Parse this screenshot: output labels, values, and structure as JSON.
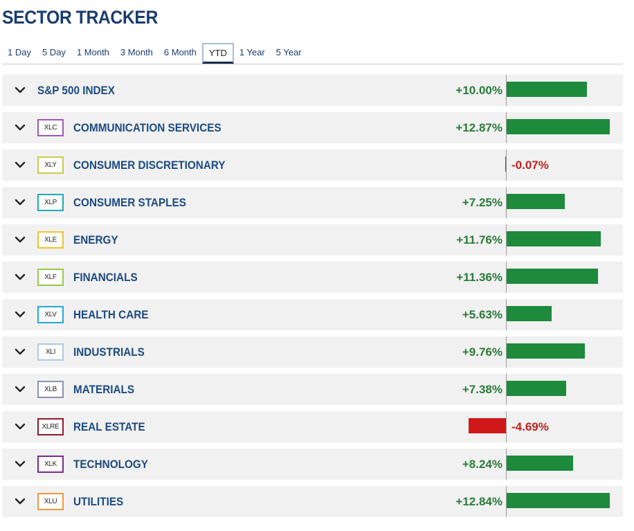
{
  "header": {
    "title": "SECTOR TRACKER"
  },
  "tabs": [
    {
      "label": "1 Day",
      "active": false
    },
    {
      "label": "5 Day",
      "active": false
    },
    {
      "label": "1 Month",
      "active": false
    },
    {
      "label": "3 Month",
      "active": false
    },
    {
      "label": "6 Month",
      "active": false
    },
    {
      "label": "YTD",
      "active": true
    },
    {
      "label": "1 Year",
      "active": false
    },
    {
      "label": "5 Year",
      "active": false
    }
  ],
  "rows": [
    {
      "ticker": "",
      "name": "S&P 500 INDEX",
      "value_text": "+10.00%",
      "value": 10.0,
      "badge_color": ""
    },
    {
      "ticker": "XLC",
      "name": "COMMUNICATION SERVICES",
      "value_text": "+12.87%",
      "value": 12.87,
      "badge_color": "#9b59b6"
    },
    {
      "ticker": "XLY",
      "name": "CONSUMER DISCRETIONARY",
      "value_text": "-0.07%",
      "value": -0.07,
      "badge_color": "#c8cc4a"
    },
    {
      "ticker": "XLP",
      "name": "CONSUMER STAPLES",
      "value_text": "+7.25%",
      "value": 7.25,
      "badge_color": "#1fa8b0"
    },
    {
      "ticker": "XLE",
      "name": "ENERGY",
      "value_text": "+11.76%",
      "value": 11.76,
      "badge_color": "#f0c428"
    },
    {
      "ticker": "XLF",
      "name": "FINANCIALS",
      "value_text": "+11.36%",
      "value": 11.36,
      "badge_color": "#9ac84a"
    },
    {
      "ticker": "XLV",
      "name": "HEALTH CARE",
      "value_text": "+5.63%",
      "value": 5.63,
      "badge_color": "#22a8d6"
    },
    {
      "ticker": "XLI",
      "name": "INDUSTRIALS",
      "value_text": "+9.76%",
      "value": 9.76,
      "badge_color": "#a8cce4"
    },
    {
      "ticker": "XLB",
      "name": "MATERIALS",
      "value_text": "+7.38%",
      "value": 7.38,
      "badge_color": "#8a90b8"
    },
    {
      "ticker": "XLRE",
      "name": "REAL ESTATE",
      "value_text": "-4.69%",
      "value": -4.69,
      "badge_color": "#8e1a2a"
    },
    {
      "ticker": "XLK",
      "name": "TECHNOLOGY",
      "value_text": "+8.24%",
      "value": 8.24,
      "badge_color": "#7a2a8a"
    },
    {
      "ticker": "XLU",
      "name": "UTILITIES",
      "value_text": "+12.84%",
      "value": 12.84,
      "badge_color": "#ec9a3c"
    }
  ],
  "colors": {
    "positive": "#1e8a3c",
    "negative": "#d01818",
    "title": "#1b3d6e"
  },
  "icons": {
    "expand": "chevron-down-icon"
  }
}
